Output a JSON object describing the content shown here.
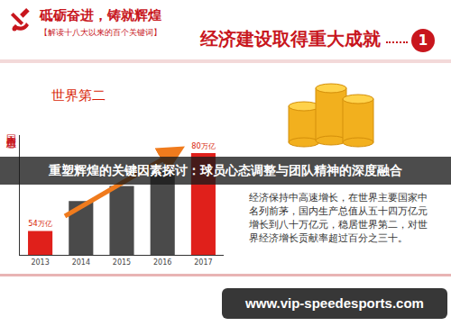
{
  "header": {
    "title": "砥砺奋进，铸就辉煌",
    "subtitle": "【解读十八大以来的百个关键词】",
    "section": "经济建设取得重大成就",
    "section_number": "1"
  },
  "chart_data": {
    "type": "bar",
    "title": "世界第二",
    "ylabel": "国内生产总值",
    "categories": [
      "2013",
      "2014",
      "2015",
      "2016",
      "2017"
    ],
    "values": [
      54,
      64,
      69,
      74,
      80
    ],
    "value_labels": [
      "54万亿",
      null,
      null,
      null,
      "80万亿"
    ],
    "colors": [
      "#e0201b",
      "#4a4a4a",
      "#4a4a4a",
      "#4a4a4a",
      "#e0201b"
    ],
    "data_labels": true,
    "ylim": [
      46,
      86
    ],
    "yticks": [],
    "tick_labels": "x",
    "grid": false
  },
  "text_panel": "经济保持中高速增长，在世界主要国家中名列前茅，国内生产总值从五十四万亿元增长到八十万亿元，稳居世界第二，对世界经济增长贡献率超过百分之三十。",
  "banner": "重塑辉煌的关键因素探讨：球员心态调整与团队精神的深度融合",
  "watermark": "www.vip-speedesports.com"
}
